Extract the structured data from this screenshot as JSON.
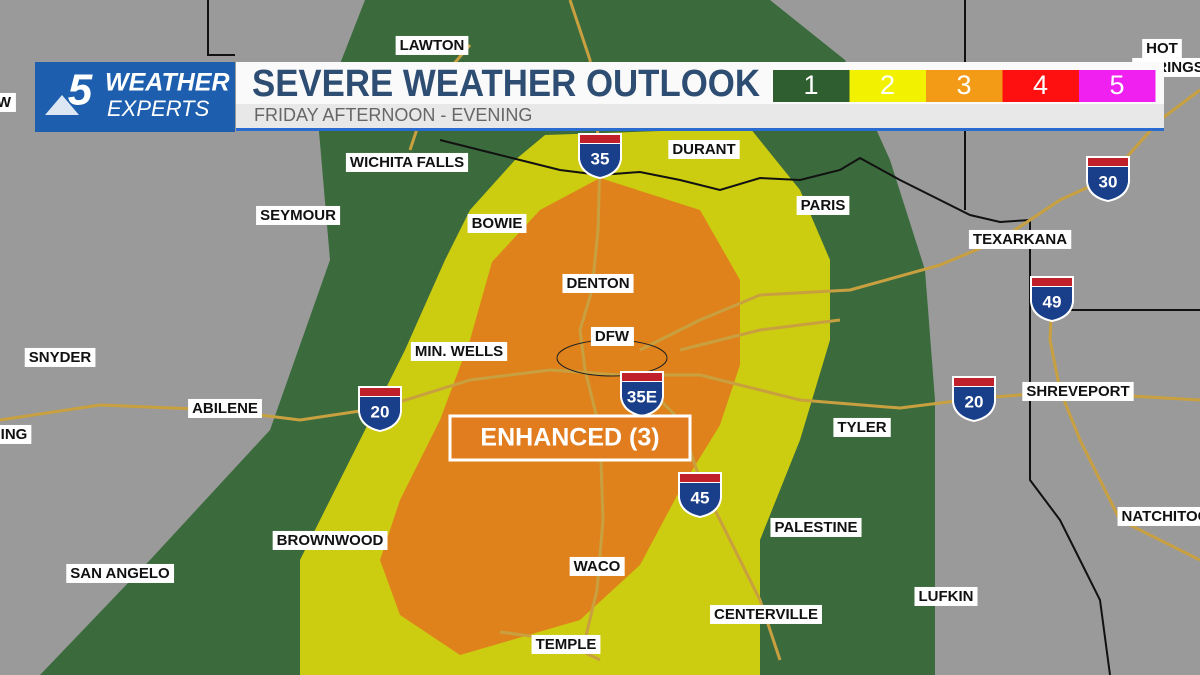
{
  "header": {
    "logo_number": "5",
    "logo_line1": "WEATHER",
    "logo_line2": "EXPERTS",
    "title": "SEVERE WEATHER OUTLOOK",
    "subtitle": "FRIDAY AFTERNOON - EVENING"
  },
  "legend": [
    {
      "label": "1",
      "color": "#2f5f30"
    },
    {
      "label": "2",
      "color": "#f2f200"
    },
    {
      "label": "3",
      "color": "#f39a16"
    },
    {
      "label": "4",
      "color": "#ff1010"
    },
    {
      "label": "5",
      "color": "#f020f0"
    }
  ],
  "risk_label": "ENHANCED (3)",
  "cities": [
    "LAWTON",
    "WICHITA FALLS",
    "SEYMOUR",
    "BOWIE",
    "DURANT",
    "PARIS",
    "DENTON",
    "DFW",
    "MIN. WELLS",
    "SNYDER",
    "ABILENE",
    "ING",
    "TYLER",
    "TEXARKANA",
    "SHREVEPORT",
    "HOT",
    "SPRINGS",
    "NATCHITOC",
    "BROWNWOOD",
    "SAN ANGELO",
    "WACO",
    "PALESTINE",
    "CENTERVILLE",
    "LUFKIN",
    "TEMPLE",
    "W"
  ],
  "shields": [
    "35",
    "30",
    "49",
    "20",
    "35E",
    "20",
    "45"
  ]
}
